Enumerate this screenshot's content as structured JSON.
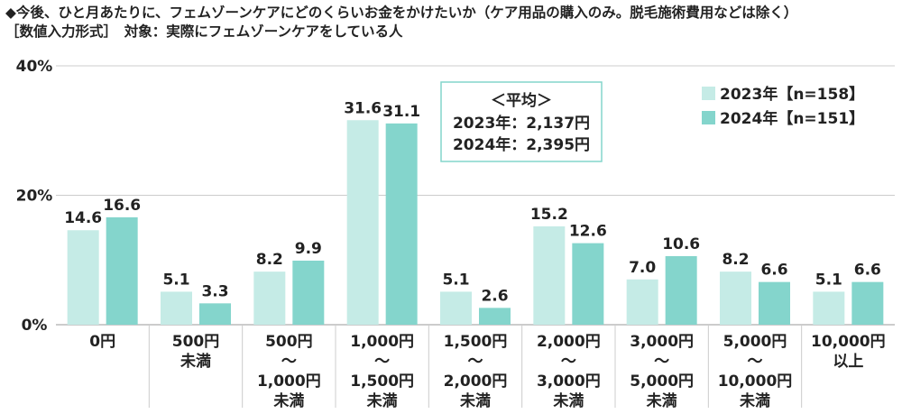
{
  "header": {
    "line1": "◆今後、ひと月あたりに、フェムゾーンケアにどのくらいお金をかけたいか（ケア用品の購入のみ。脱毛施術費用などは除く）",
    "line2": "［数値入力形式］　対象：実際にフェムゾーンケアをしている人"
  },
  "average_box": {
    "title": "＜平均＞",
    "line1": "2023年：2,137円",
    "line2": "2024年：2,395円"
  },
  "chart_data": {
    "type": "bar",
    "title": "",
    "xlabel": "",
    "ylabel": "",
    "ylim": [
      0,
      40
    ],
    "yticks": [
      "0%",
      "20%",
      "40%"
    ],
    "grid": true,
    "legend_position": "top-right",
    "categories": [
      [
        "0円"
      ],
      [
        "500円",
        "未満"
      ],
      [
        "500円",
        "～",
        "1,000円",
        "未満"
      ],
      [
        "1,000円",
        "～",
        "1,500円",
        "未満"
      ],
      [
        "1,500円",
        "～",
        "2,000円",
        "未満"
      ],
      [
        "2,000円",
        "～",
        "3,000円",
        "未満"
      ],
      [
        "3,000円",
        "～",
        "5,000円",
        "未満"
      ],
      [
        "5,000円",
        "～",
        "10,000円",
        "未満"
      ],
      [
        "10,000円",
        "以上"
      ]
    ],
    "series": [
      {
        "name": "2023年【n=158】",
        "color": "#c5ebe6",
        "values": [
          14.6,
          5.1,
          8.2,
          31.6,
          5.1,
          15.2,
          7.0,
          8.2,
          5.1
        ],
        "labels": [
          "14.6",
          "5.1",
          "8.2",
          "31.6",
          "5.1",
          "15.2",
          "7.0",
          "8.2",
          "5.1"
        ]
      },
      {
        "name": "2024年【n=151】",
        "color": "#84d5cc",
        "values": [
          16.6,
          3.3,
          9.9,
          31.1,
          2.6,
          12.6,
          10.6,
          6.6,
          6.6
        ],
        "labels": [
          "16.6",
          "3.3",
          "9.9",
          "31.1",
          "2.6",
          "12.6",
          "10.6",
          "6.6",
          "6.6"
        ]
      }
    ]
  }
}
